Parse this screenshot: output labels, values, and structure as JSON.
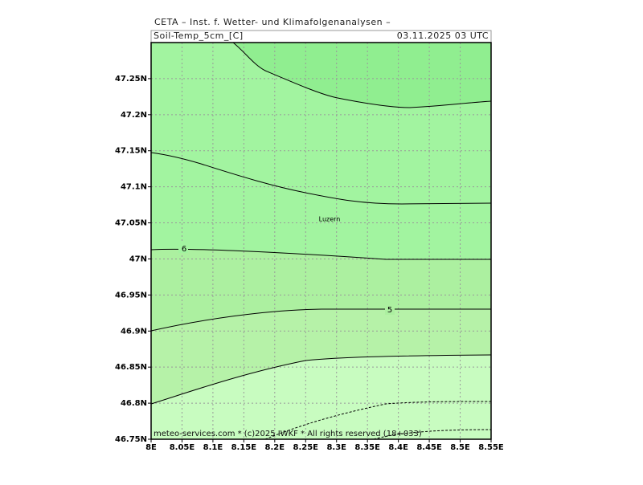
{
  "header": {
    "title": "CETA – Inst. f. Wetter- und Klimafolgenanalysen –",
    "variable": "Soil-Temp_5cm_[C]",
    "time": "03.11.2025 03 UTC"
  },
  "map": {
    "xlim": [
      8.0,
      8.55
    ],
    "ylim": [
      46.75,
      47.3
    ],
    "xticks": [
      {
        "value": 8.0,
        "label": "8E"
      },
      {
        "value": 8.05,
        "label": "8.05E"
      },
      {
        "value": 8.1,
        "label": "8.1E"
      },
      {
        "value": 8.15,
        "label": "8.15E"
      },
      {
        "value": 8.2,
        "label": "8.2E"
      },
      {
        "value": 8.25,
        "label": "8.25E"
      },
      {
        "value": 8.3,
        "label": "8.3E"
      },
      {
        "value": 8.35,
        "label": "8.35E"
      },
      {
        "value": 8.4,
        "label": "8.4E"
      },
      {
        "value": 8.45,
        "label": "8.45E"
      },
      {
        "value": 8.5,
        "label": "8.5E"
      },
      {
        "value": 8.55,
        "label": "8.55E"
      }
    ],
    "yticks": [
      {
        "value": 46.75,
        "label": "46.75N"
      },
      {
        "value": 46.8,
        "label": "46.8N"
      },
      {
        "value": 46.85,
        "label": "46.85N"
      },
      {
        "value": 46.9,
        "label": "46.9N"
      },
      {
        "value": 46.95,
        "label": "46.95N"
      },
      {
        "value": 47.0,
        "label": "47N"
      },
      {
        "value": 47.05,
        "label": "47.05N"
      },
      {
        "value": 47.1,
        "label": "47.1N"
      },
      {
        "value": 47.15,
        "label": "47.15N"
      },
      {
        "value": 47.2,
        "label": "47.2N"
      },
      {
        "value": 47.25,
        "label": "47.25N"
      }
    ],
    "contour_labels": [
      "6",
      "5"
    ],
    "city": "Luzern"
  },
  "footer": "meteo-services.com * (c)2025 IWKF * All rights reserved (18+033)"
}
